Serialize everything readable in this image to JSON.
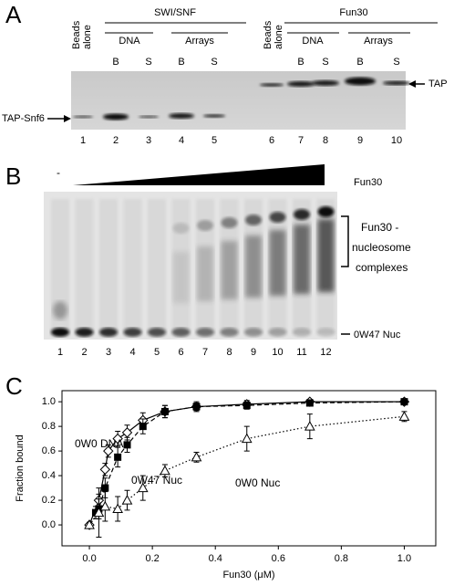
{
  "panel_a": {
    "label": "A",
    "groups": [
      "SWI/SNF",
      "Fun30"
    ],
    "subgroups": [
      "DNA",
      "Arrays",
      "DNA",
      "Arrays"
    ],
    "beads": [
      [
        "Beads",
        "alone"
      ],
      [
        "Beads",
        "alone"
      ]
    ],
    "lane_tags": [
      "B",
      "S",
      "B",
      "S",
      "B",
      "S",
      "B",
      "S"
    ],
    "lanes": [
      1,
      2,
      3,
      4,
      5,
      6,
      7,
      8,
      9,
      10
    ],
    "left_marker": "TAP-Snf6",
    "right_marker": "TAP"
  },
  "panel_b": {
    "label": "B",
    "minus": "-",
    "gradient_label": "Fun30",
    "bracket_label": [
      "Fun30 -",
      "nucleosome",
      "complexes"
    ],
    "band_label": "0W47 Nuc",
    "lanes": [
      1,
      2,
      3,
      4,
      5,
      6,
      7,
      8,
      9,
      10,
      11,
      12
    ]
  },
  "panel_c": {
    "label": "C",
    "chart_data": {
      "type": "scatter",
      "xlabel": "Fun30 (μM)",
      "ylabel": "Fraction bound",
      "xlim": [
        -0.087,
        1.1
      ],
      "ylim": [
        -0.17,
        1.09
      ],
      "xticks": [
        {
          "value": 0,
          "label": "0.0"
        },
        {
          "value": 0.2,
          "label": "0.2"
        },
        {
          "value": 0.4,
          "label": "0.4"
        },
        {
          "value": 0.6,
          "label": "0.6"
        },
        {
          "value": 0.8,
          "label": "0.8"
        },
        {
          "value": 1,
          "label": "1.0"
        }
      ],
      "yticks": [
        {
          "value": 0,
          "label": "0.0"
        },
        {
          "value": 0.2,
          "label": "0.2"
        },
        {
          "value": 0.4,
          "label": "0.4"
        },
        {
          "value": 0.6,
          "label": "0.6"
        },
        {
          "value": 0.8,
          "label": "0.8"
        },
        {
          "value": 1,
          "label": "1.0"
        }
      ],
      "series": [
        {
          "name": "0W0 DNA",
          "color": "#000000",
          "marker": "diamond",
          "linestyle": "solid",
          "x": [
            0,
            0.03,
            0.05,
            0.06,
            0.09,
            0.12,
            0.17,
            0.24,
            0.34,
            0.5,
            0.7,
            1.0
          ],
          "values": [
            0,
            0.2,
            0.45,
            0.6,
            0.7,
            0.75,
            0.85,
            0.92,
            0.96,
            0.98,
            1.0,
            1.0
          ],
          "errors": [
            0.02,
            0.05,
            0.05,
            0.05,
            0.06,
            0.06,
            0.06,
            0.05,
            0.03,
            0.03,
            0.02,
            0.01
          ]
        },
        {
          "name": "0W47 Nuc",
          "color": "#000000",
          "marker": "square",
          "linestyle": "dashed",
          "x": [
            0.02,
            0.03,
            0.05,
            0.09,
            0.12,
            0.17,
            0.24,
            0.34,
            0.5,
            0.7,
            1.0
          ],
          "values": [
            0.1,
            0.13,
            0.3,
            0.55,
            0.65,
            0.8,
            0.92,
            0.96,
            0.97,
            0.99,
            1.0
          ],
          "errors": [
            0.05,
            0.08,
            0.08,
            0.08,
            0.06,
            0.06,
            0.05,
            0.04,
            0.03,
            0.02,
            0.02
          ]
        },
        {
          "name": "0W0 Nuc",
          "color": "#000000",
          "marker": "triangle",
          "linestyle": "dotted",
          "x": [
            0,
            0.03,
            0.05,
            0.09,
            0.12,
            0.17,
            0.24,
            0.34,
            0.5,
            0.7,
            1.0
          ],
          "values": [
            0,
            0.1,
            0.15,
            0.13,
            0.2,
            0.3,
            0.44,
            0.55,
            0.7,
            0.8,
            0.88
          ],
          "errors": [
            0.02,
            0.2,
            0.12,
            0.1,
            0.08,
            0.1,
            0.05,
            0.04,
            0.1,
            0.1,
            0.04
          ]
        }
      ],
      "annotations": [
        "0W0 DNA",
        "0W47 Nuc",
        "0W0 Nuc"
      ]
    }
  }
}
